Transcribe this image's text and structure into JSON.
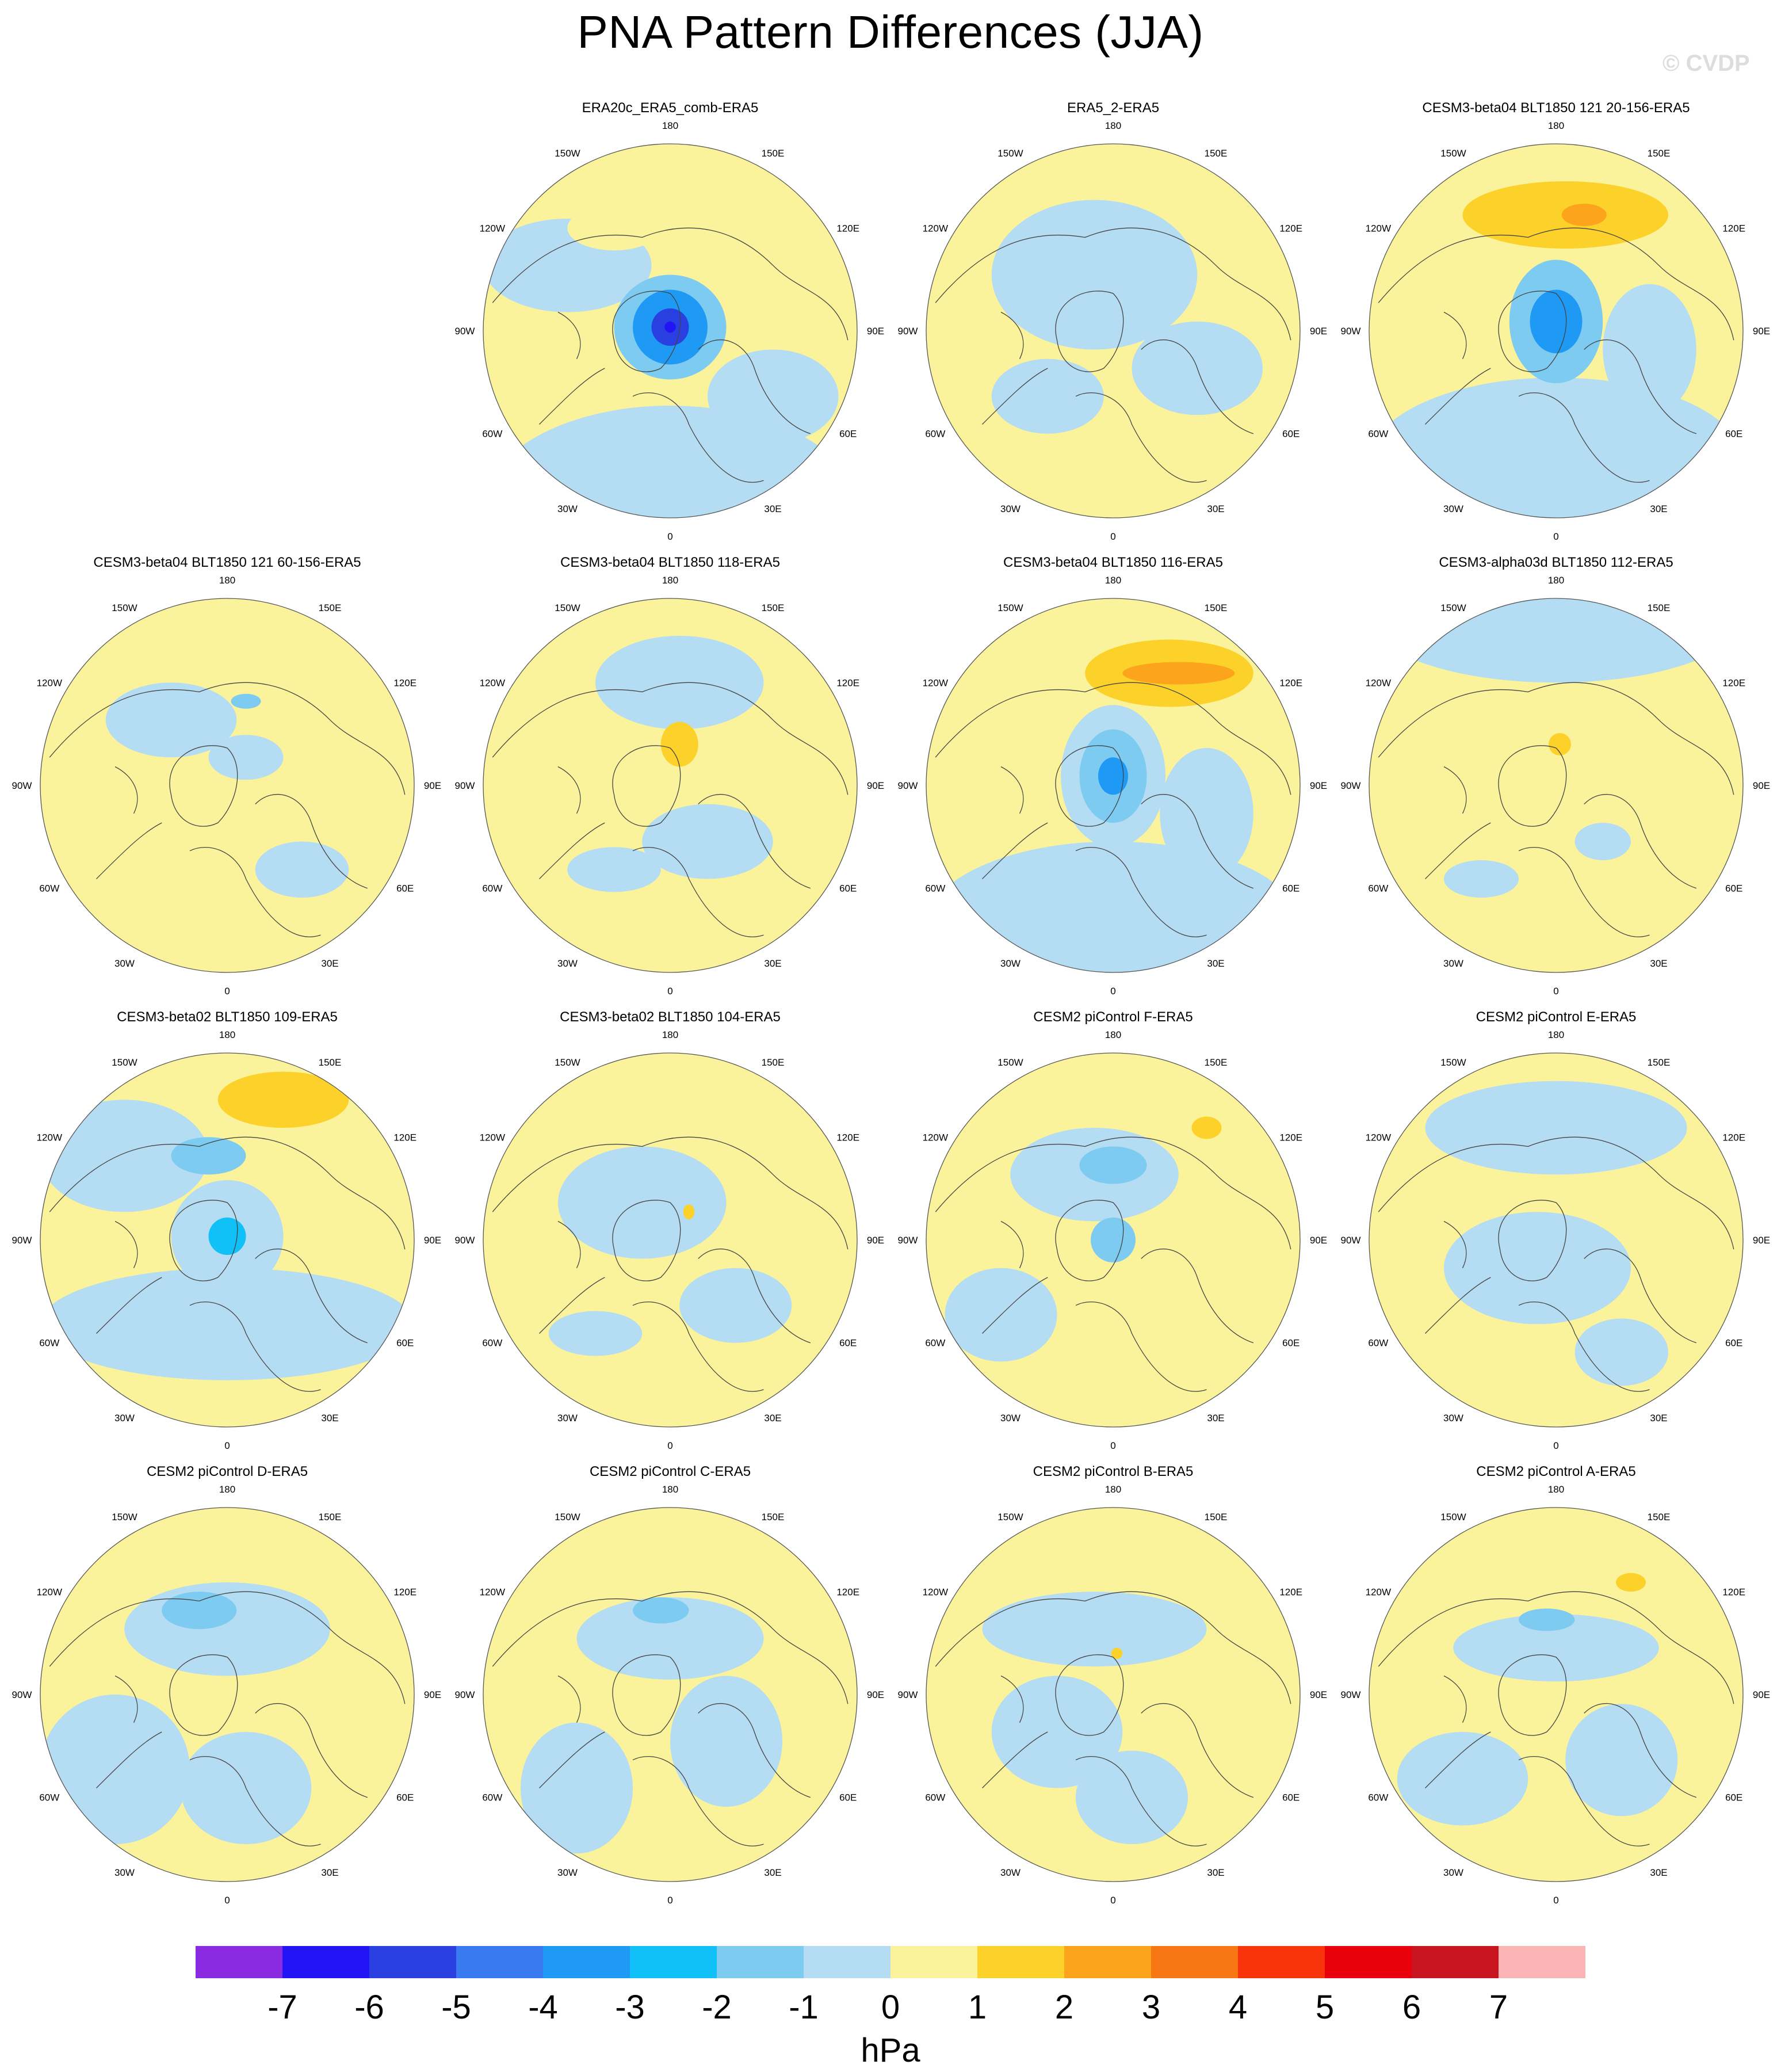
{
  "title": "PNA Pattern Differences (JJA)",
  "watermark": "© CVDP",
  "units": "hPa",
  "colors": {
    "neg": "#b4dcf2",
    "pos": "#fbf39b",
    "ocean_bg": "#fbf39b",
    "coast": "#444444"
  },
  "lon_labels": [
    "180",
    "150E",
    "120E",
    "90E",
    "60E",
    "30E",
    "0",
    "30W",
    "60W",
    "90W",
    "120W",
    "150W"
  ],
  "colorbar": {
    "labels": [
      "-7",
      "-6",
      "-5",
      "-4",
      "-3",
      "-2",
      "-1",
      "0",
      "1",
      "2",
      "3",
      "4",
      "5",
      "6",
      "7"
    ],
    "colors": [
      "#8a2be2",
      "#2214f5",
      "#2a3fe0",
      "#3a7af0",
      "#1e9af5",
      "#10c0f6",
      "#7ecbf2",
      "#b4dcf2",
      "#fbf39b",
      "#fcd22a",
      "#fba41c",
      "#f77714",
      "#f9330a",
      "#e8000a",
      "#c8141e",
      "#fbb4b4"
    ]
  },
  "panels": [
    {
      "id": "p1",
      "title": "ERA20c_ERA5_comb-ERA5",
      "row": 0,
      "col": 1,
      "pattern": "A"
    },
    {
      "id": "p2",
      "title": "ERA5_2-ERA5",
      "row": 0,
      "col": 2,
      "pattern": "B"
    },
    {
      "id": "p3",
      "title": "CESM3-beta04 BLT1850 121 20-156-ERA5",
      "row": 0,
      "col": 3,
      "pattern": "C"
    },
    {
      "id": "p4",
      "title": "CESM3-beta04 BLT1850 121 60-156-ERA5",
      "row": 1,
      "col": 0,
      "pattern": "D"
    },
    {
      "id": "p5",
      "title": "CESM3-beta04 BLT1850 118-ERA5",
      "row": 1,
      "col": 1,
      "pattern": "E"
    },
    {
      "id": "p6",
      "title": "CESM3-beta04 BLT1850 116-ERA5",
      "row": 1,
      "col": 2,
      "pattern": "F"
    },
    {
      "id": "p7",
      "title": "CESM3-alpha03d BLT1850 112-ERA5",
      "row": 1,
      "col": 3,
      "pattern": "G"
    },
    {
      "id": "p8",
      "title": "CESM3-beta02 BLT1850 109-ERA5",
      "row": 2,
      "col": 0,
      "pattern": "H"
    },
    {
      "id": "p9",
      "title": "CESM3-beta02 BLT1850 104-ERA5",
      "row": 2,
      "col": 1,
      "pattern": "I"
    },
    {
      "id": "p10",
      "title": "CESM2 piControl F-ERA5",
      "row": 2,
      "col": 2,
      "pattern": "J"
    },
    {
      "id": "p11",
      "title": "CESM2 piControl E-ERA5",
      "row": 2,
      "col": 3,
      "pattern": "K"
    },
    {
      "id": "p12",
      "title": "CESM2 piControl D-ERA5",
      "row": 3,
      "col": 0,
      "pattern": "L"
    },
    {
      "id": "p13",
      "title": "CESM2 piControl C-ERA5",
      "row": 3,
      "col": 1,
      "pattern": "M"
    },
    {
      "id": "p14",
      "title": "CESM2 piControl B-ERA5",
      "row": 3,
      "col": 2,
      "pattern": "N"
    },
    {
      "id": "p15",
      "title": "CESM2 piControl A-ERA5",
      "row": 3,
      "col": 3,
      "pattern": "O"
    }
  ]
}
